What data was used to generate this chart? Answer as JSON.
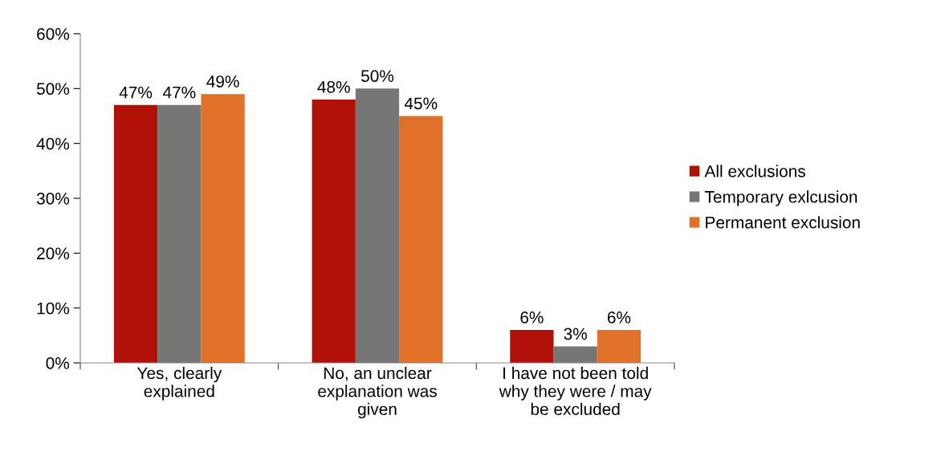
{
  "chart_data": {
    "type": "bar",
    "categories": [
      "Yes, clearly\nexplained",
      "No, an unclear\nexplanation was\ngiven",
      "I have not been told\nwhy they were / may\nbe excluded"
    ],
    "series": [
      {
        "name": "All exclusions",
        "color": "#b01006",
        "values": [
          47,
          48,
          6
        ],
        "value_labels": [
          "47%",
          "48%",
          "6%"
        ]
      },
      {
        "name": "Temporary exlcusion",
        "color": "#767676",
        "values": [
          47,
          50,
          3
        ],
        "value_labels": [
          "47%",
          "50%",
          "3%"
        ]
      },
      {
        "name": "Permanent exclusion",
        "color": "#e07128",
        "values": [
          49,
          45,
          6
        ],
        "value_labels": [
          "49%",
          "45%",
          "6%"
        ]
      }
    ],
    "ylim": [
      0,
      60
    ],
    "yticks": [
      {
        "value": 0,
        "label": "0%"
      },
      {
        "value": 10,
        "label": "10%"
      },
      {
        "value": 20,
        "label": "20%"
      },
      {
        "value": 30,
        "label": "30%"
      },
      {
        "value": 40,
        "label": "40%"
      },
      {
        "value": 50,
        "label": "50%"
      },
      {
        "value": 60,
        "label": "60%"
      }
    ],
    "grid": false,
    "legend": "right"
  }
}
